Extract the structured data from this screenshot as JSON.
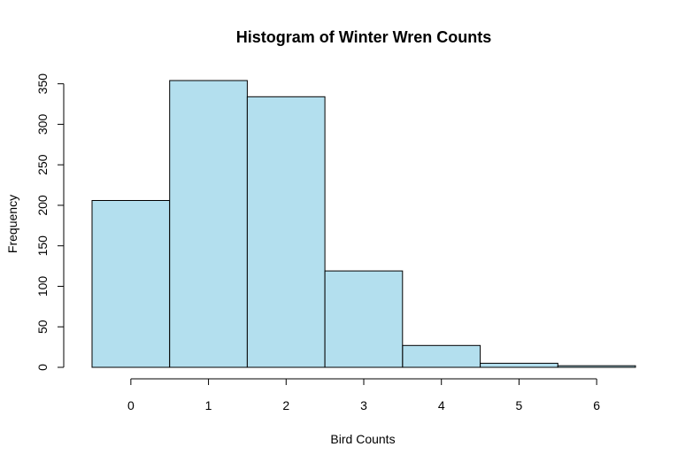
{
  "chart_data": {
    "type": "bar",
    "title": "Histogram of Winter Wren Counts",
    "xlabel": "Bird Counts",
    "ylabel": "Frequency",
    "bar_color": "#b3dfee",
    "bins": [
      {
        "start": -0.5,
        "end": 0.5,
        "value": 206
      },
      {
        "start": 0.5,
        "end": 1.5,
        "value": 354
      },
      {
        "start": 1.5,
        "end": 2.5,
        "value": 334
      },
      {
        "start": 2.5,
        "end": 3.5,
        "value": 119
      },
      {
        "start": 3.5,
        "end": 4.5,
        "value": 27
      },
      {
        "start": 4.5,
        "end": 5.5,
        "value": 5
      },
      {
        "start": 5.5,
        "end": 6.5,
        "value": 2
      }
    ],
    "x_ticks": [
      0,
      1,
      2,
      3,
      4,
      5,
      6
    ],
    "y_ticks": [
      0,
      50,
      100,
      150,
      200,
      250,
      300,
      350
    ],
    "xlim": [
      -0.5,
      6.5
    ],
    "ylim": [
      0,
      354
    ],
    "grid": false
  }
}
